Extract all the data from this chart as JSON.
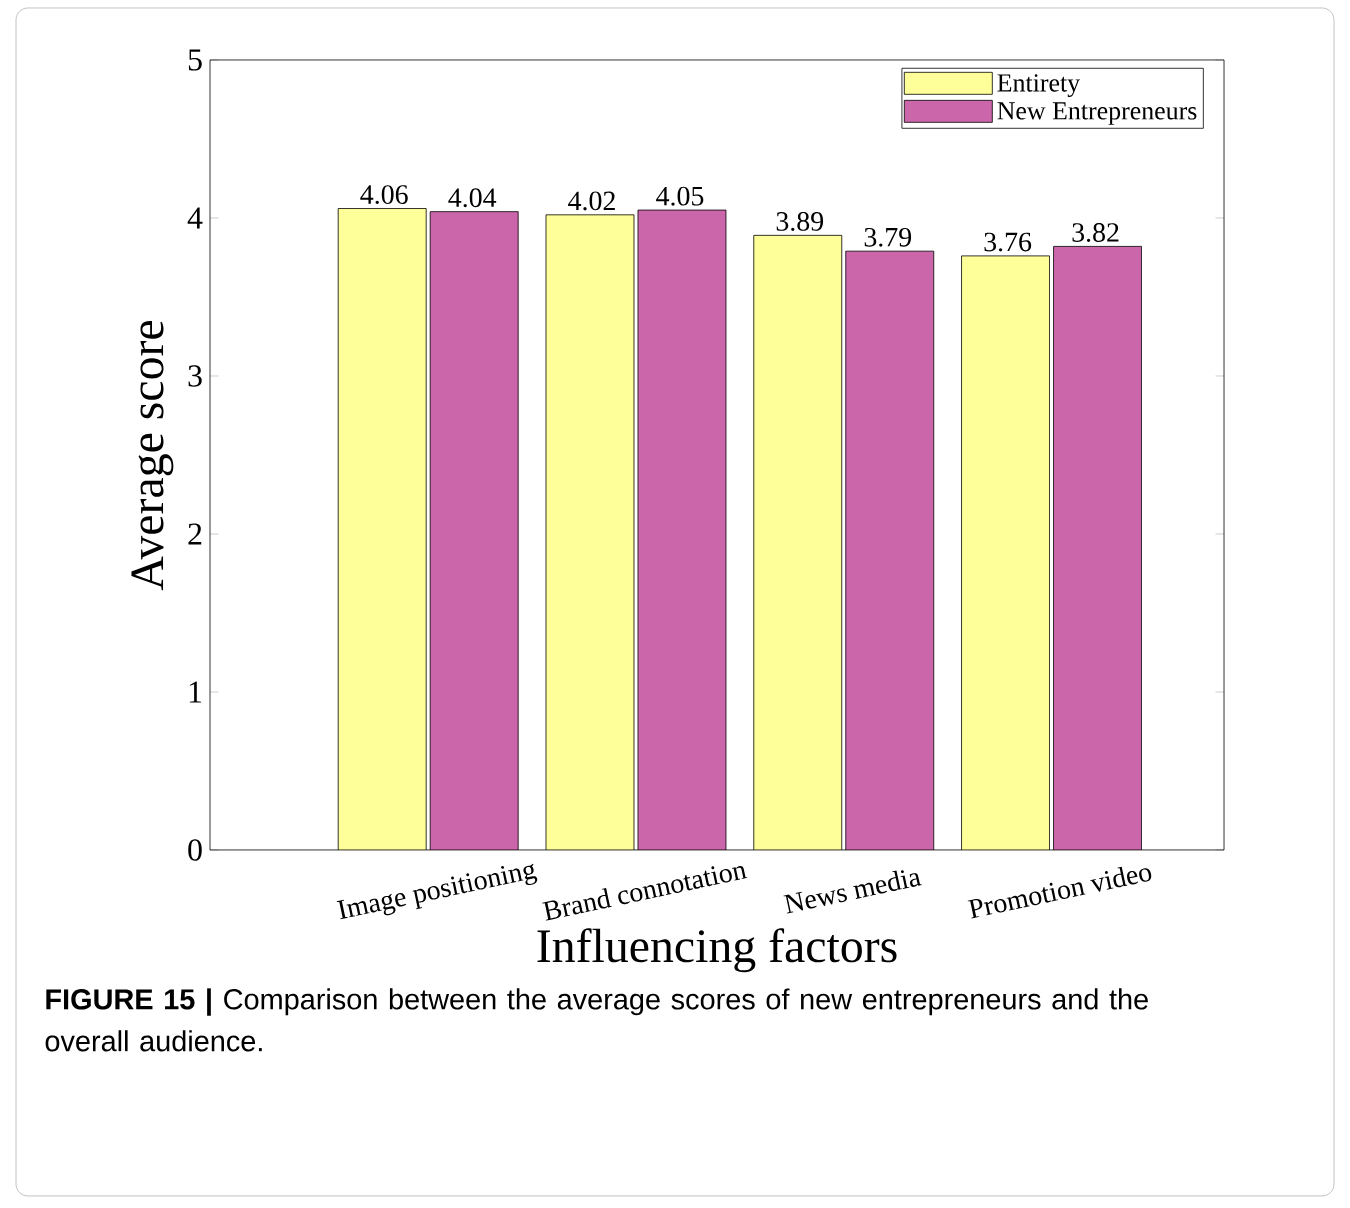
{
  "chart_data": {
    "type": "bar",
    "xlabel": "Influencing factors",
    "ylabel": "Average score",
    "categories": [
      "Image positioning",
      "Brand connotation",
      "News media",
      "Promotion video"
    ],
    "series": [
      {
        "name": "Entirety",
        "color": "#ffff99",
        "values": [
          4.06,
          4.02,
          3.89,
          3.76
        ]
      },
      {
        "name": "New Entrepreneurs",
        "color": "#cc66aa",
        "values": [
          4.04,
          4.05,
          3.79,
          3.82
        ]
      }
    ],
    "ylim": [
      0,
      5
    ],
    "yticks": [
      0,
      1,
      2,
      3,
      4,
      5
    ],
    "data_labels": true,
    "legend": "top right",
    "annotations": [
      "**FIGURE 15 |** Comparison between the average scores of new entrepreneurs and the overall audience."
    ]
  }
}
